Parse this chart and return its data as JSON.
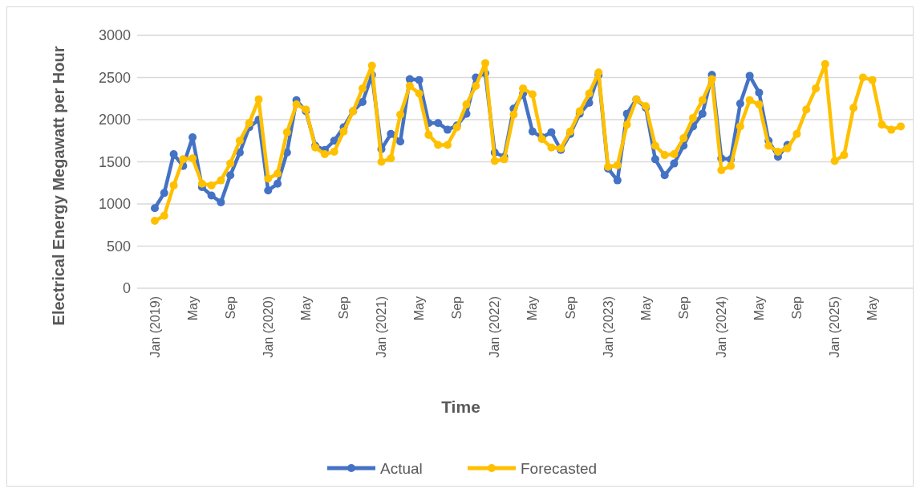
{
  "chart_data": {
    "type": "line",
    "xlabel": "Time",
    "ylabel": "Electrical Energy Megawatt per Hour",
    "categories": [
      "Jan (2019)",
      null,
      null,
      null,
      "May",
      null,
      null,
      null,
      "Sep",
      null,
      null,
      null,
      "Jan (2020)",
      null,
      null,
      null,
      "May",
      null,
      null,
      null,
      "Sep",
      null,
      null,
      null,
      "Jan (2021)",
      null,
      null,
      null,
      "May",
      null,
      null,
      null,
      "Sep",
      null,
      null,
      null,
      "Jan (2022)",
      null,
      null,
      null,
      "May",
      null,
      null,
      null,
      "Sep",
      null,
      null,
      null,
      "Jan (2023)",
      null,
      null,
      null,
      "May",
      null,
      null,
      null,
      "Sep",
      null,
      null,
      null,
      "Jan (2024)",
      null,
      null,
      null,
      "May",
      null,
      null,
      null,
      "Sep",
      null,
      null,
      null,
      "Jan (2025)",
      null,
      null,
      null,
      "May",
      null,
      null,
      null
    ],
    "series": [
      {
        "name": "Actual",
        "color": "#4472c4",
        "values": [
          950,
          1130,
          1590,
          1450,
          1790,
          1200,
          1100,
          1020,
          1340,
          1610,
          1910,
          2000,
          1160,
          1240,
          1610,
          2230,
          2100,
          1690,
          1640,
          1750,
          1910,
          2100,
          2210,
          2530,
          1650,
          1830,
          1740,
          2480,
          2470,
          1960,
          1960,
          1880,
          1930,
          2070,
          2500,
          2550,
          1610,
          1560,
          2130,
          2310,
          1860,
          1790,
          1850,
          1640,
          1830,
          2070,
          2200,
          2530,
          1420,
          1280,
          2070,
          2240,
          2140,
          1530,
          1340,
          1480,
          1690,
          1920,
          2070,
          2530,
          1540,
          1530,
          2190,
          2520,
          2320,
          1750,
          1560,
          1700,
          null,
          null,
          null,
          null,
          null,
          null,
          null,
          null,
          null,
          null,
          null,
          null
        ]
      },
      {
        "name": "Forecasted",
        "color": "#ffc000",
        "values": [
          800,
          860,
          1220,
          1530,
          1540,
          1240,
          1220,
          1280,
          1480,
          1750,
          1960,
          2240,
          1300,
          1360,
          1850,
          2180,
          2120,
          1670,
          1590,
          1620,
          1860,
          2100,
          2370,
          2640,
          1500,
          1540,
          2060,
          2400,
          2310,
          1820,
          1700,
          1700,
          1910,
          2180,
          2400,
          2670,
          1510,
          1530,
          2060,
          2370,
          2300,
          1770,
          1670,
          1660,
          1860,
          2100,
          2310,
          2560,
          1440,
          1460,
          1940,
          2240,
          2160,
          1690,
          1580,
          1590,
          1780,
          2020,
          2230,
          2480,
          1400,
          1450,
          1920,
          2230,
          2180,
          1690,
          1620,
          1660,
          1830,
          2120,
          2370,
          2660,
          1510,
          1580,
          2140,
          2500,
          2470,
          1940,
          1880,
          1920
        ]
      }
    ],
    "ylim": [
      0,
      3000
    ],
    "yticks": [
      0,
      500,
      1000,
      1500,
      2000,
      2500,
      3000
    ],
    "grid": "y",
    "legend": "bottom",
    "marker": "circle",
    "line_style": "solid"
  }
}
